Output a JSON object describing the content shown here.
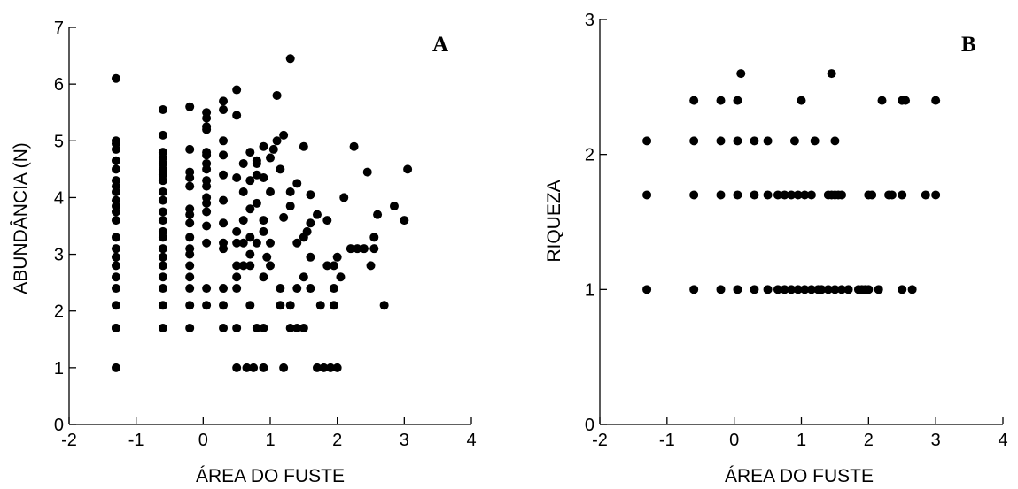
{
  "chart_data": [
    {
      "type": "scatter",
      "panel_label": "A",
      "xlabel": "ÁREA DO FUSTE",
      "ylabel": "ABUNDÂNCIA (N)",
      "xlim": [
        -2,
        4
      ],
      "ylim": [
        0,
        7
      ],
      "xticks": [
        "-2",
        "-1",
        "0",
        "1",
        "2",
        "3",
        "4"
      ],
      "yticks": [
        "0",
        "1",
        "2",
        "3",
        "4",
        "5",
        "6",
        "7"
      ],
      "grid": false,
      "points": [
        [
          -1.3,
          1.0
        ],
        [
          -1.3,
          1.7
        ],
        [
          -1.3,
          1.7
        ],
        [
          -1.3,
          2.1
        ],
        [
          -1.3,
          2.4
        ],
        [
          -1.3,
          2.6
        ],
        [
          -1.3,
          2.8
        ],
        [
          -1.3,
          2.95
        ],
        [
          -1.3,
          3.1
        ],
        [
          -1.3,
          3.3
        ],
        [
          -1.3,
          3.6
        ],
        [
          -1.3,
          3.75
        ],
        [
          -1.3,
          3.85
        ],
        [
          -1.3,
          3.95
        ],
        [
          -1.3,
          4.1
        ],
        [
          -1.3,
          4.2
        ],
        [
          -1.3,
          4.3
        ],
        [
          -1.3,
          4.5
        ],
        [
          -1.3,
          4.65
        ],
        [
          -1.3,
          4.85
        ],
        [
          -1.3,
          4.95
        ],
        [
          -1.3,
          5.0
        ],
        [
          -1.3,
          6.1
        ],
        [
          -0.6,
          1.7
        ],
        [
          -0.6,
          2.1
        ],
        [
          -0.6,
          2.4
        ],
        [
          -0.6,
          2.6
        ],
        [
          -0.6,
          2.8
        ],
        [
          -0.6,
          2.95
        ],
        [
          -0.6,
          3.1
        ],
        [
          -0.6,
          3.3
        ],
        [
          -0.6,
          3.4
        ],
        [
          -0.6,
          3.6
        ],
        [
          -0.6,
          3.75
        ],
        [
          -0.6,
          3.95
        ],
        [
          -0.6,
          4.1
        ],
        [
          -0.6,
          4.3
        ],
        [
          -0.6,
          4.4
        ],
        [
          -0.6,
          4.5
        ],
        [
          -0.6,
          4.6
        ],
        [
          -0.6,
          4.7
        ],
        [
          -0.6,
          4.8
        ],
        [
          -0.6,
          5.1
        ],
        [
          -0.6,
          5.55
        ],
        [
          -0.2,
          1.7
        ],
        [
          -0.2,
          2.1
        ],
        [
          -0.2,
          2.4
        ],
        [
          -0.2,
          2.6
        ],
        [
          -0.2,
          2.8
        ],
        [
          -0.2,
          3.0
        ],
        [
          -0.2,
          3.1
        ],
        [
          -0.2,
          3.3
        ],
        [
          -0.2,
          3.55
        ],
        [
          -0.2,
          3.7
        ],
        [
          -0.2,
          3.8
        ],
        [
          -0.2,
          4.2
        ],
        [
          -0.2,
          4.35
        ],
        [
          -0.2,
          4.45
        ],
        [
          -0.2,
          4.85
        ],
        [
          -0.2,
          5.6
        ],
        [
          0.05,
          2.1
        ],
        [
          0.05,
          2.4
        ],
        [
          0.05,
          3.2
        ],
        [
          0.05,
          3.5
        ],
        [
          0.05,
          3.75
        ],
        [
          0.05,
          3.9
        ],
        [
          0.05,
          4.0
        ],
        [
          0.05,
          4.2
        ],
        [
          0.05,
          4.3
        ],
        [
          0.05,
          4.5
        ],
        [
          0.05,
          4.6
        ],
        [
          0.05,
          4.75
        ],
        [
          0.05,
          4.8
        ],
        [
          0.05,
          5.2
        ],
        [
          0.05,
          5.25
        ],
        [
          0.05,
          5.4
        ],
        [
          0.05,
          5.5
        ],
        [
          0.3,
          1.7
        ],
        [
          0.3,
          2.1
        ],
        [
          0.3,
          2.4
        ],
        [
          0.3,
          3.1
        ],
        [
          0.3,
          3.2
        ],
        [
          0.3,
          3.55
        ],
        [
          0.3,
          3.95
        ],
        [
          0.3,
          4.4
        ],
        [
          0.3,
          4.75
        ],
        [
          0.3,
          5.0
        ],
        [
          0.3,
          5.55
        ],
        [
          0.3,
          5.7
        ],
        [
          0.5,
          1.0
        ],
        [
          0.5,
          1.7
        ],
        [
          0.5,
          2.4
        ],
        [
          0.5,
          2.6
        ],
        [
          0.5,
          2.8
        ],
        [
          0.5,
          3.2
        ],
        [
          0.5,
          3.4
        ],
        [
          0.5,
          4.35
        ],
        [
          0.5,
          5.45
        ],
        [
          0.5,
          5.9
        ],
        [
          0.6,
          2.8
        ],
        [
          0.6,
          3.2
        ],
        [
          0.6,
          3.6
        ],
        [
          0.6,
          4.1
        ],
        [
          0.6,
          4.6
        ],
        [
          0.65,
          1.0
        ],
        [
          0.7,
          2.1
        ],
        [
          0.7,
          2.8
        ],
        [
          0.7,
          3.0
        ],
        [
          0.7,
          3.3
        ],
        [
          0.7,
          3.8
        ],
        [
          0.7,
          4.3
        ],
        [
          0.7,
          4.8
        ],
        [
          0.75,
          1.0
        ],
        [
          0.8,
          1.7
        ],
        [
          0.8,
          3.2
        ],
        [
          0.8,
          3.9
        ],
        [
          0.8,
          4.4
        ],
        [
          0.8,
          4.6
        ],
        [
          0.8,
          4.65
        ],
        [
          0.9,
          1.0
        ],
        [
          0.9,
          1.7
        ],
        [
          0.9,
          2.6
        ],
        [
          0.9,
          3.4
        ],
        [
          0.9,
          3.6
        ],
        [
          0.9,
          4.35
        ],
        [
          0.9,
          4.9
        ],
        [
          0.95,
          2.95
        ],
        [
          1.0,
          2.8
        ],
        [
          1.0,
          3.2
        ],
        [
          1.0,
          4.1
        ],
        [
          1.0,
          4.7
        ],
        [
          1.05,
          4.85
        ],
        [
          1.1,
          5.0
        ],
        [
          1.1,
          5.8
        ],
        [
          1.15,
          2.1
        ],
        [
          1.15,
          2.4
        ],
        [
          1.15,
          4.5
        ],
        [
          1.2,
          1.0
        ],
        [
          1.2,
          3.65
        ],
        [
          1.2,
          5.1
        ],
        [
          1.3,
          2.1
        ],
        [
          1.3,
          3.85
        ],
        [
          1.3,
          4.1
        ],
        [
          1.3,
          6.45
        ],
        [
          1.3,
          1.7
        ],
        [
          1.4,
          1.7
        ],
        [
          1.4,
          2.4
        ],
        [
          1.4,
          4.25
        ],
        [
          1.4,
          3.2
        ],
        [
          1.5,
          1.7
        ],
        [
          1.5,
          2.6
        ],
        [
          1.5,
          3.3
        ],
        [
          1.5,
          4.9
        ],
        [
          1.55,
          3.4
        ],
        [
          1.6,
          2.4
        ],
        [
          1.6,
          2.95
        ],
        [
          1.6,
          3.55
        ],
        [
          1.6,
          4.05
        ],
        [
          1.7,
          1.0
        ],
        [
          1.7,
          3.7
        ],
        [
          1.75,
          2.1
        ],
        [
          1.8,
          1.0
        ],
        [
          1.85,
          2.8
        ],
        [
          1.85,
          3.6
        ],
        [
          1.9,
          1.0
        ],
        [
          1.95,
          2.1
        ],
        [
          1.95,
          2.4
        ],
        [
          1.95,
          2.8
        ],
        [
          2.0,
          1.0
        ],
        [
          2.0,
          2.95
        ],
        [
          2.05,
          2.6
        ],
        [
          2.1,
          4.0
        ],
        [
          2.2,
          3.1
        ],
        [
          2.25,
          4.9
        ],
        [
          2.3,
          3.1
        ],
        [
          2.4,
          3.1
        ],
        [
          2.45,
          4.45
        ],
        [
          2.5,
          2.8
        ],
        [
          2.55,
          3.1
        ],
        [
          2.55,
          3.3
        ],
        [
          2.6,
          3.7
        ],
        [
          2.7,
          2.1
        ],
        [
          2.85,
          3.85
        ],
        [
          3.0,
          3.6
        ],
        [
          3.05,
          4.5
        ]
      ]
    },
    {
      "type": "scatter",
      "panel_label": "B",
      "xlabel": "ÁREA DO FUSTE",
      "ylabel": "RIQUEZA",
      "xlim": [
        -2,
        4
      ],
      "ylim": [
        0,
        3
      ],
      "xticks": [
        "-2",
        "-1",
        "0",
        "1",
        "2",
        "3",
        "4"
      ],
      "yticks": [
        "0",
        "1",
        "2",
        "3"
      ],
      "grid": false,
      "points": [
        [
          -1.3,
          1.0
        ],
        [
          -1.3,
          1.7
        ],
        [
          -1.3,
          2.1
        ],
        [
          -0.6,
          1.0
        ],
        [
          -0.6,
          1.7
        ],
        [
          -0.6,
          2.1
        ],
        [
          -0.6,
          2.4
        ],
        [
          -0.2,
          1.0
        ],
        [
          -0.2,
          1.7
        ],
        [
          -0.2,
          2.1
        ],
        [
          -0.2,
          2.4
        ],
        [
          0.05,
          1.0
        ],
        [
          0.05,
          1.7
        ],
        [
          0.05,
          2.1
        ],
        [
          0.05,
          2.4
        ],
        [
          0.1,
          2.6
        ],
        [
          0.3,
          1.0
        ],
        [
          0.3,
          1.7
        ],
        [
          0.3,
          2.1
        ],
        [
          0.5,
          1.0
        ],
        [
          0.5,
          1.7
        ],
        [
          0.5,
          2.1
        ],
        [
          0.65,
          1.0
        ],
        [
          0.65,
          1.7
        ],
        [
          0.75,
          1.0
        ],
        [
          0.75,
          1.7
        ],
        [
          0.85,
          1.0
        ],
        [
          0.85,
          1.7
        ],
        [
          0.9,
          2.1
        ],
        [
          0.95,
          1.0
        ],
        [
          0.95,
          1.7
        ],
        [
          1.0,
          2.4
        ],
        [
          1.05,
          1.0
        ],
        [
          1.05,
          1.7
        ],
        [
          1.15,
          1.0
        ],
        [
          1.15,
          1.7
        ],
        [
          1.2,
          2.1
        ],
        [
          1.25,
          1.0
        ],
        [
          1.3,
          1.0
        ],
        [
          1.4,
          1.0
        ],
        [
          1.4,
          1.7
        ],
        [
          1.45,
          1.7
        ],
        [
          1.45,
          2.6
        ],
        [
          1.5,
          1.0
        ],
        [
          1.5,
          1.7
        ],
        [
          1.5,
          2.1
        ],
        [
          1.55,
          1.7
        ],
        [
          1.6,
          1.0
        ],
        [
          1.6,
          1.7
        ],
        [
          1.7,
          1.0
        ],
        [
          1.85,
          1.0
        ],
        [
          1.9,
          1.0
        ],
        [
          1.95,
          1.0
        ],
        [
          2.0,
          1.0
        ],
        [
          2.0,
          1.7
        ],
        [
          2.05,
          1.7
        ],
        [
          2.15,
          1.0
        ],
        [
          2.2,
          2.4
        ],
        [
          2.3,
          1.7
        ],
        [
          2.35,
          1.7
        ],
        [
          2.5,
          1.0
        ],
        [
          2.5,
          1.7
        ],
        [
          2.5,
          2.4
        ],
        [
          2.55,
          2.4
        ],
        [
          2.65,
          1.0
        ],
        [
          2.85,
          1.7
        ],
        [
          3.0,
          1.7
        ],
        [
          3.0,
          2.4
        ]
      ]
    }
  ]
}
